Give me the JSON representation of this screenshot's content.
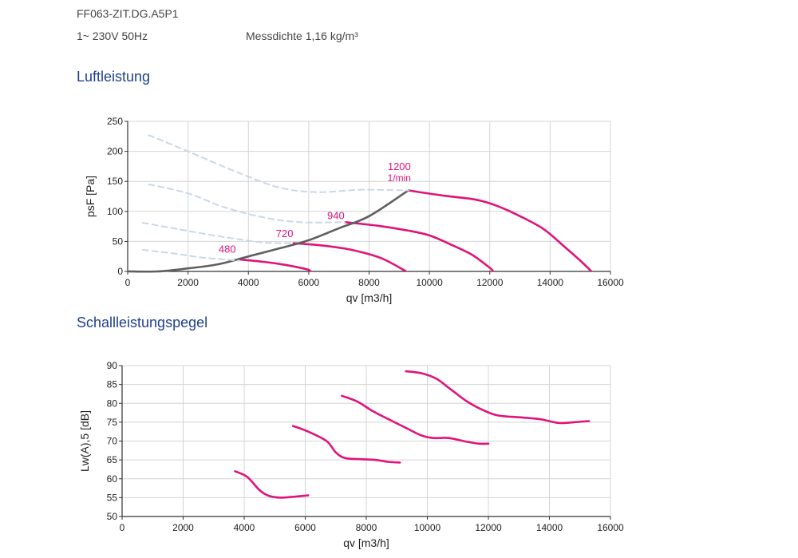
{
  "header": {
    "model": "FF063-ZIT.DG.A5P1",
    "supply": "1~ 230V 50Hz",
    "density": "Messdichte 1,16 kg/m³"
  },
  "sections": {
    "air": "Luftleistung",
    "sound": "Schallleistungspegel"
  },
  "colors": {
    "magenta": "#e0137a",
    "gray": "#5f5f5f",
    "dashed": "#c9d8e8",
    "grid": "#d4d4d4"
  },
  "chart_data": [
    {
      "type": "line",
      "xlabel": "qv [m3/h]",
      "ylabel": "psF [Pa]",
      "xlim": [
        0,
        16000
      ],
      "ylim": [
        0,
        250
      ],
      "x_ticks": [
        "0",
        "2000",
        "4000",
        "6000",
        "8000",
        "10000",
        "12000",
        "14000",
        "16000"
      ],
      "y_ticks": [
        "0",
        "50",
        "100",
        "150",
        "200",
        "250"
      ],
      "grid": true,
      "annotations": [
        "480",
        "720",
        "940",
        "1200",
        "1/min"
      ],
      "series": [
        {
          "name": "480",
          "style": "solid",
          "points": [
            [
              3700,
              20
            ],
            [
              4500,
              16
            ],
            [
              5200,
              11
            ],
            [
              5900,
              4
            ],
            [
              6050,
              1
            ]
          ]
        },
        {
          "name": "720",
          "style": "solid",
          "points": [
            [
              5500,
              47
            ],
            [
              6300,
              44
            ],
            [
              7200,
              38
            ],
            [
              7900,
              30
            ],
            [
              8500,
              20
            ],
            [
              9200,
              1
            ]
          ]
        },
        {
          "name": "940",
          "style": "solid",
          "points": [
            [
              7200,
              82
            ],
            [
              8300,
              76
            ],
            [
              9300,
              68
            ],
            [
              10000,
              60
            ],
            [
              10700,
              45
            ],
            [
              11400,
              28
            ],
            [
              12000,
              6
            ],
            [
              12100,
              1
            ]
          ]
        },
        {
          "name": "1200",
          "style": "solid",
          "points": [
            [
              9300,
              135
            ],
            [
              10500,
              126
            ],
            [
              11500,
              120
            ],
            [
              12200,
              110
            ],
            [
              13000,
              92
            ],
            [
              13800,
              70
            ],
            [
              14500,
              40
            ],
            [
              15000,
              18
            ],
            [
              15350,
              1
            ]
          ]
        },
        {
          "name": "",
          "style": "line",
          "points": [
            [
              0,
              0
            ],
            [
              1000,
              0
            ],
            [
              2000,
              5
            ],
            [
              3000,
              12
            ],
            [
              4000,
              25
            ],
            [
              5000,
              38
            ],
            [
              6000,
              52
            ],
            [
              7000,
              72
            ],
            [
              8000,
              92
            ],
            [
              9300,
              135
            ]
          ]
        },
        {
          "name": "",
          "style": "dashed",
          "points": [
            [
              500,
              36
            ],
            [
              1500,
              30
            ],
            [
              2500,
              23
            ],
            [
              3700,
              18
            ]
          ]
        },
        {
          "name": "",
          "style": "dashed",
          "points": [
            [
              500,
              81
            ],
            [
              1500,
              72
            ],
            [
              2500,
              63
            ],
            [
              3500,
              55
            ],
            [
              4500,
              48
            ],
            [
              5500,
              47
            ]
          ]
        },
        {
          "name": "",
          "style": "dashed",
          "points": [
            [
              700,
              145
            ],
            [
              2000,
              130
            ],
            [
              3200,
              107
            ],
            [
              4500,
              90
            ],
            [
              5700,
              82
            ],
            [
              7200,
              82
            ]
          ]
        },
        {
          "name": "",
          "style": "dashed",
          "points": [
            [
              700,
              227
            ],
            [
              2000,
              200
            ],
            [
              3500,
              168
            ],
            [
              5000,
              140
            ],
            [
              6300,
              132
            ],
            [
              7700,
              136
            ],
            [
              9300,
              135
            ]
          ]
        }
      ]
    },
    {
      "type": "line",
      "xlabel": "qv [m3/h]",
      "ylabel": "Lw(A),5 [dB]",
      "xlim": [
        0,
        16000
      ],
      "ylim": [
        50,
        90
      ],
      "x_ticks": [
        "0",
        "2000",
        "4000",
        "6000",
        "8000",
        "10000",
        "12000",
        "14000",
        "16000"
      ],
      "y_ticks": [
        "50",
        "55",
        "60",
        "65",
        "70",
        "75",
        "80",
        "85",
        "90"
      ],
      "grid": true,
      "series": [
        {
          "name": "",
          "points": [
            [
              3700,
              62
            ],
            [
              4100,
              60.5
            ],
            [
              4500,
              57
            ],
            [
              4800,
              55.5
            ],
            [
              5200,
              55
            ],
            [
              5700,
              55.3
            ],
            [
              6100,
              55.6
            ]
          ]
        },
        {
          "name": "",
          "points": [
            [
              5600,
              74
            ],
            [
              6100,
              72.5
            ],
            [
              6700,
              70
            ],
            [
              7000,
              67
            ],
            [
              7300,
              65.5
            ],
            [
              7800,
              65.2
            ],
            [
              8300,
              65
            ],
            [
              8700,
              64.5
            ],
            [
              9100,
              64.3
            ]
          ]
        },
        {
          "name": "",
          "points": [
            [
              7200,
              82
            ],
            [
              7700,
              80.5
            ],
            [
              8200,
              78
            ],
            [
              8800,
              75.5
            ],
            [
              9300,
              73.5
            ],
            [
              9800,
              71.5
            ],
            [
              10200,
              70.8
            ],
            [
              10700,
              70.8
            ],
            [
              11300,
              69.8
            ],
            [
              11700,
              69.3
            ],
            [
              12000,
              69.3
            ]
          ]
        },
        {
          "name": "",
          "points": [
            [
              9300,
              88.5
            ],
            [
              9800,
              88
            ],
            [
              10300,
              86.5
            ],
            [
              10800,
              83.5
            ],
            [
              11300,
              80.5
            ],
            [
              11800,
              78.3
            ],
            [
              12300,
              76.8
            ],
            [
              13000,
              76.3
            ],
            [
              13700,
              75.8
            ],
            [
              14300,
              74.8
            ],
            [
              14800,
              75
            ],
            [
              15300,
              75.3
            ]
          ]
        }
      ]
    }
  ]
}
